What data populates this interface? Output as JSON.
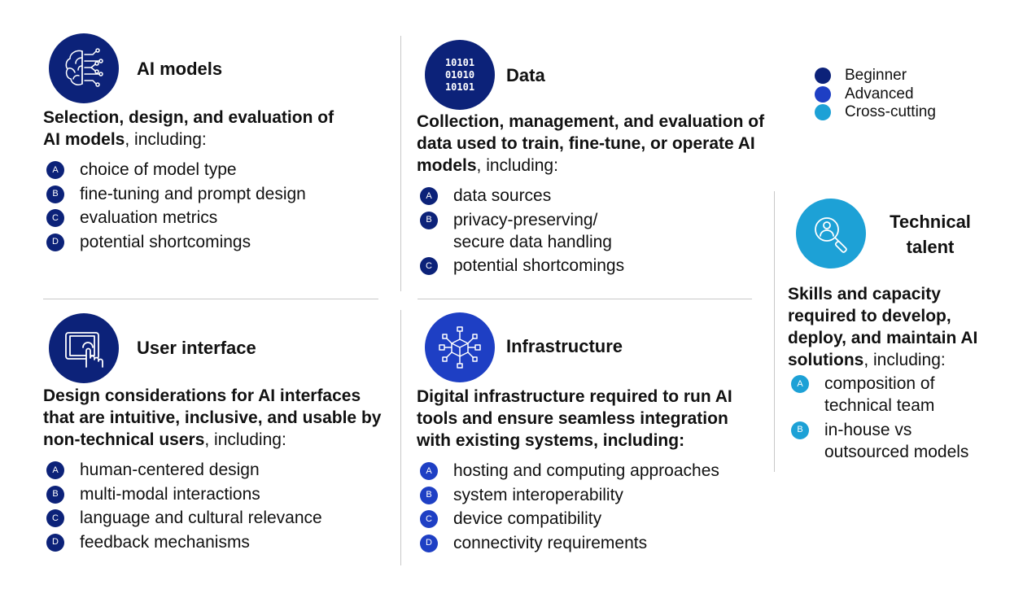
{
  "legend": [
    {
      "label": "Beginner",
      "color": "#0c2279"
    },
    {
      "label": "Advanced",
      "color": "#1e3fc4"
    },
    {
      "label": "Cross-cutting",
      "color": "#1da1d6"
    }
  ],
  "panels": {
    "ai_models": {
      "title": "AI models",
      "icon": "brain-circuit-icon",
      "color": "#0c2279",
      "desc_bold": "Selection, design, and evaluation of AI models",
      "desc_rest": ", including:",
      "items": [
        {
          "letter": "A",
          "text": "choice of model type"
        },
        {
          "letter": "B",
          "text": "fine-tuning and prompt design"
        },
        {
          "letter": "C",
          "text": "evaluation metrics"
        },
        {
          "letter": "D",
          "text": "potential shortcomings"
        }
      ]
    },
    "data": {
      "title": "Data",
      "icon": "binary-data-icon",
      "icon_lines": [
        "10101",
        "01010",
        "10101"
      ],
      "color": "#0c2279",
      "desc_bold": "Collection, management, and evaluation of data used to train, fine-tune, or operate AI models",
      "desc_rest": ", including:",
      "items": [
        {
          "letter": "A",
          "text": "data sources"
        },
        {
          "letter": "B",
          "text": "privacy-preserving/\nsecure data handling"
        },
        {
          "letter": "C",
          "text": "potential shortcomings"
        }
      ]
    },
    "user_interface": {
      "title": "User interface",
      "icon": "tablet-touch-icon",
      "color": "#0c2279",
      "desc_bold": "Design considerations for AI interfaces that are intuitive, inclusive, and usable by non-technical users",
      "desc_rest": ", including:",
      "items": [
        {
          "letter": "A",
          "text": "human-centered design"
        },
        {
          "letter": "B",
          "text": "multi-modal interactions"
        },
        {
          "letter": "C",
          "text": "language and cultural relevance"
        },
        {
          "letter": "D",
          "text": "feedback mechanisms"
        }
      ]
    },
    "infrastructure": {
      "title": "Infrastructure",
      "icon": "network-cube-icon",
      "color": "#1e3fc4",
      "desc_bold": "Digital infrastructure required to run AI tools and ensure seamless integration with existing systems, including:",
      "desc_rest": "",
      "items": [
        {
          "letter": "A",
          "text": "hosting and computing approaches"
        },
        {
          "letter": "B",
          "text": "system interoperability"
        },
        {
          "letter": "C",
          "text": "device compatibility"
        },
        {
          "letter": "D",
          "text": "connectivity requirements"
        }
      ]
    },
    "technical_talent": {
      "title": "Technical talent",
      "icon": "person-search-icon",
      "color": "#1da1d6",
      "desc_bold": "Skills and capacity required to develop, deploy, and maintain AI solutions",
      "desc_rest": ", including:",
      "items": [
        {
          "letter": "A",
          "text": "composition of\ntechnical team"
        },
        {
          "letter": "B",
          "text": "in-house vs\noutsourced models"
        }
      ]
    }
  }
}
